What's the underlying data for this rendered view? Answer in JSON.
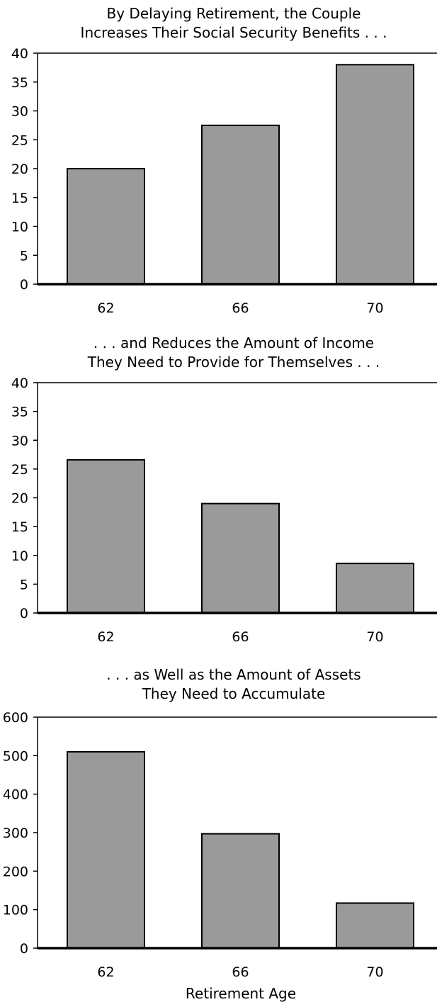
{
  "chart_data": [
    {
      "type": "bar",
      "title": "By Delaying Retirement, the Couple\nIncreases Their Social Security Benefits . . .",
      "title_lines": [
        "By Delaying Retirement, the Couple",
        "Increases Their Social Security Benefits . . ."
      ],
      "categories": [
        "62",
        "66",
        "70"
      ],
      "values": [
        20,
        27.5,
        38
      ],
      "ylim": [
        0,
        40
      ],
      "yticks": [
        "0",
        "5",
        "10",
        "15",
        "20",
        "25",
        "30",
        "35",
        "40"
      ],
      "xlabel": "",
      "ylabel": "",
      "bar_color": "#9a9a9a",
      "grid": false
    },
    {
      "type": "bar",
      "title": ". . . and Reduces the Amount of Income\nThey Need to Provide for Themselves . . .",
      "title_lines": [
        ". . . and Reduces the Amount of Income",
        "They Need to Provide for Themselves . . ."
      ],
      "categories": [
        "62",
        "66",
        "70"
      ],
      "values": [
        26.6,
        19,
        8.6
      ],
      "ylim": [
        0,
        40
      ],
      "yticks": [
        "0",
        "5",
        "10",
        "15",
        "20",
        "25",
        "30",
        "35",
        "40"
      ],
      "xlabel": "",
      "ylabel": "",
      "bar_color": "#9a9a9a",
      "grid": false
    },
    {
      "type": "bar",
      "title": ". . . as Well as the Amount of Assets\nThey Need to Accumulate",
      "title_lines": [
        ". . . as Well as the Amount of Assets",
        "They Need to Accumulate"
      ],
      "categories": [
        "62",
        "66",
        "70"
      ],
      "values": [
        510,
        297,
        117
      ],
      "ylim": [
        0,
        600
      ],
      "yticks": [
        "0",
        "100",
        "200",
        "300",
        "400",
        "500",
        "600"
      ],
      "xlabel": "Retirement Age",
      "ylabel": "",
      "bar_color": "#9a9a9a",
      "grid": false
    }
  ]
}
